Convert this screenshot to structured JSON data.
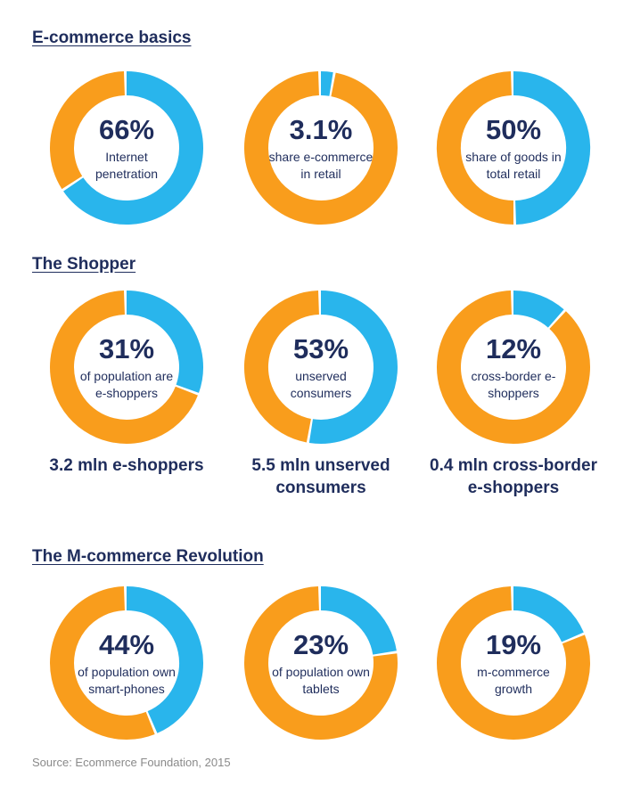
{
  "colors": {
    "accent_blue": "#29b5ec",
    "accent_orange": "#f99d1c",
    "text_navy": "#1f2d5c",
    "source_gray": "#8a8a8a"
  },
  "sections": [
    {
      "title": "E-commerce basics"
    },
    {
      "title": "The Shopper"
    },
    {
      "title": "The M-commerce Revolution"
    }
  ],
  "chart_data": [
    {
      "type": "pie",
      "section": "E-commerce basics",
      "value_label": "66%",
      "label": "Internet penetration",
      "value": 66
    },
    {
      "type": "pie",
      "section": "E-commerce basics",
      "value_label": "3.1%",
      "label": "share e-commerce in retail",
      "value": 3.1
    },
    {
      "type": "pie",
      "section": "E-commerce basics",
      "value_label": "50%",
      "label": "share of goods in total retail",
      "value": 50
    },
    {
      "type": "pie",
      "section": "The Shopper",
      "value_label": "31%",
      "label": "of population are e-shoppers",
      "value": 31,
      "sublabel": "3.2 mln e-shoppers"
    },
    {
      "type": "pie",
      "section": "The Shopper",
      "value_label": "53%",
      "label": "unserved consumers",
      "value": 53,
      "sublabel": "5.5 mln unserved consumers"
    },
    {
      "type": "pie",
      "section": "The Shopper",
      "value_label": "12%",
      "label": "cross-border e-shoppers",
      "value": 12,
      "sublabel": "0.4 mln cross-border e-shoppers"
    },
    {
      "type": "pie",
      "section": "The M-commerce Revolution",
      "value_label": "44%",
      "label": "of population own smart-phones",
      "value": 44
    },
    {
      "type": "pie",
      "section": "The M-commerce Revolution",
      "value_label": "23%",
      "label": "of population own tablets",
      "value": 23
    },
    {
      "type": "pie",
      "section": "The M-commerce Revolution",
      "value_label": "19%",
      "label": "m-commerce growth",
      "value": 19
    }
  ],
  "source": "Source: Ecommerce Foundation, 2015"
}
